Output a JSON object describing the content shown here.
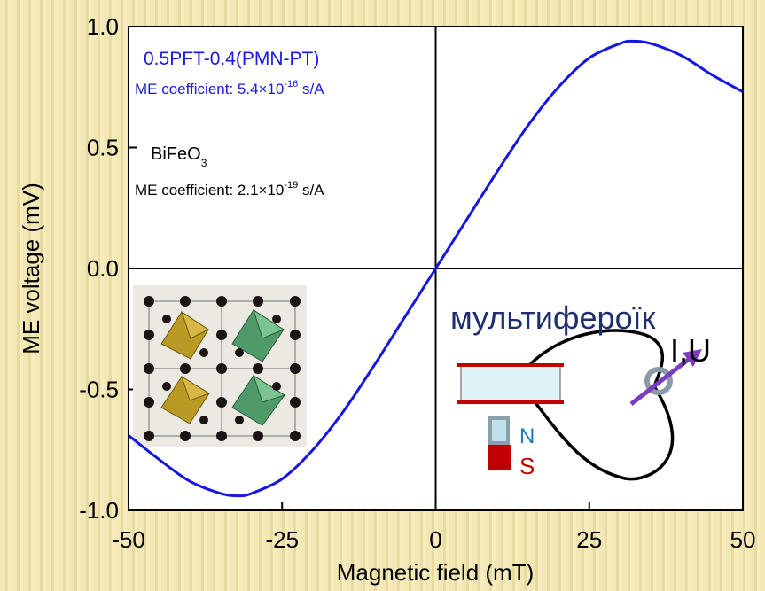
{
  "chart_data": {
    "type": "line",
    "xlabel": "Magnetic field (mT)",
    "ylabel": "ME voltage (mV)",
    "xlim": [
      -50,
      50
    ],
    "ylim": [
      -1.0,
      1.0
    ],
    "x_ticks": [
      "-50",
      "-25",
      "0",
      "25",
      "50"
    ],
    "y_ticks": [
      "-1.0",
      "-0.5",
      "0.0",
      "0.5",
      "1.0"
    ],
    "series": [
      {
        "color": "#1515e6",
        "x": [
          -50,
          -45,
          -40,
          -35,
          -32,
          -30,
          -25,
          -20,
          -15,
          -10,
          -5,
          0,
          5,
          10,
          15,
          20,
          25,
          30,
          32,
          35,
          40,
          45,
          50
        ],
        "y": [
          -0.69,
          -0.79,
          -0.88,
          -0.93,
          -0.94,
          -0.93,
          -0.87,
          -0.75,
          -0.59,
          -0.4,
          -0.2,
          0.0,
          0.2,
          0.4,
          0.59,
          0.75,
          0.87,
          0.93,
          0.94,
          0.93,
          0.88,
          0.8,
          0.73
        ]
      }
    ],
    "annotations": {
      "pft_title": "0.5PFT-0.4(PMN-PT)",
      "pft_coef_prefix": "ME coefficient: 5.4×10",
      "pft_coef_exp": "-16",
      "pft_coef_unit": " s/A",
      "bfo_name": "BiFeO",
      "bfo_sub": "3",
      "bfo_coef_prefix": "ME coefficient: 2.1×10",
      "bfo_coef_exp": "-19",
      "bfo_coef_unit": " s/A"
    }
  },
  "diagram": {
    "label": "мультифероїк",
    "measure_label": "I,U",
    "magnet_n": "N",
    "magnet_s": "S"
  },
  "colors": {
    "curve": "#1515e6",
    "axis": "#000000",
    "annotation_blue": "#1a1ae0",
    "label_navy": "#1f2f6e",
    "magnet_red": "#c00000",
    "magnet_blue": "#9fd3e0",
    "arrow_purple": "#7a3cc0"
  }
}
